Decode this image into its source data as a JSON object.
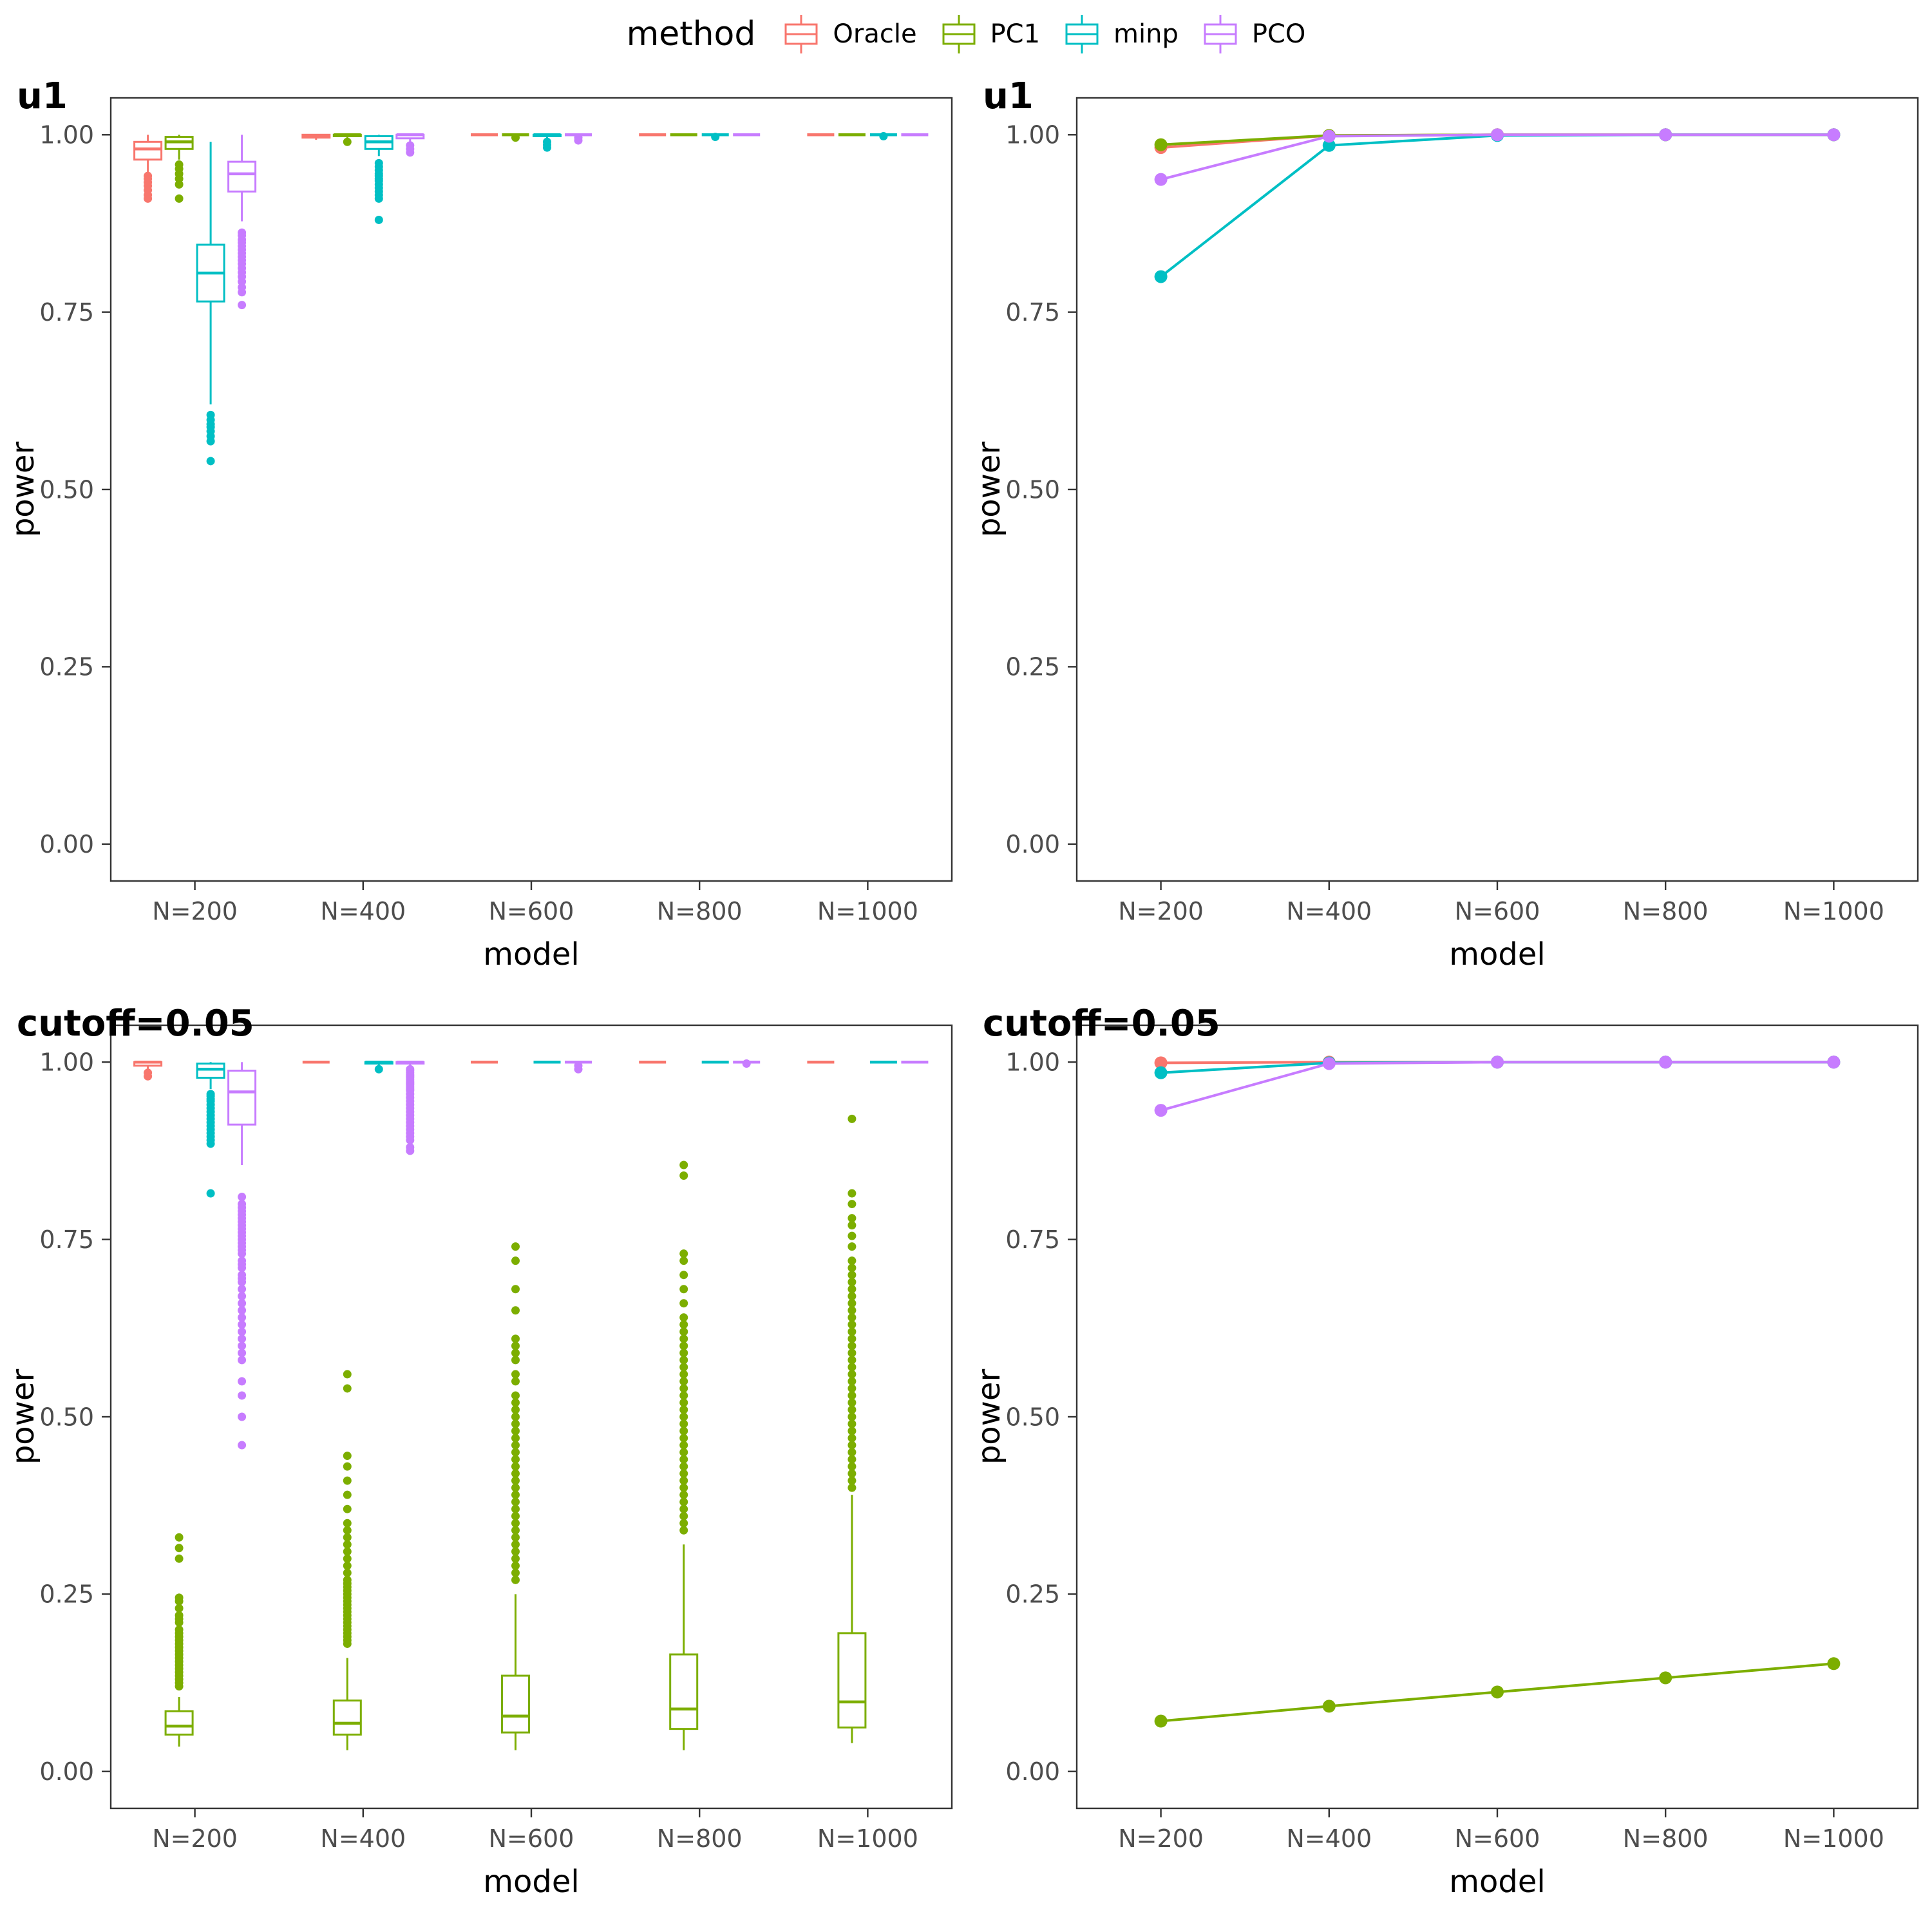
{
  "legend": {
    "title": "method",
    "items": [
      {
        "label": "Oracle",
        "color": "#F8766D"
      },
      {
        "label": "PC1",
        "color": "#7CAE00"
      },
      {
        "label": "minp",
        "color": "#00BFC4"
      },
      {
        "label": "PCO",
        "color": "#C77CFF"
      }
    ]
  },
  "layout": {
    "legend_position": "top",
    "grid": "off",
    "panel_border": "#333333"
  },
  "chart_data": [
    {
      "id": "u1_box",
      "type": "boxplot",
      "title": "u1",
      "xlabel": "model",
      "ylabel": "power",
      "categories": [
        "N=200",
        "N=400",
        "N=600",
        "N=800",
        "N=1000"
      ],
      "yticks": [
        0,
        0.25,
        0.5,
        0.75,
        1.0
      ],
      "ylim": [
        0,
        1
      ],
      "series": [
        {
          "name": "Oracle",
          "color": "#F8766D",
          "boxes": [
            {
              "lo": 0.945,
              "q1": 0.965,
              "med": 0.98,
              "q3": 0.99,
              "hi": 1.0,
              "out": [
                0.942,
                0.938,
                0.933,
                0.928,
                0.922,
                0.915,
                0.91
              ]
            },
            {
              "lo": 0.993,
              "q1": 0.996,
              "med": 0.999,
              "q3": 1.0,
              "hi": 1.0,
              "out": []
            },
            {
              "lo": 1.0,
              "q1": 1.0,
              "med": 1.0,
              "q3": 1.0,
              "hi": 1.0,
              "out": []
            },
            {
              "lo": 1.0,
              "q1": 1.0,
              "med": 1.0,
              "q3": 1.0,
              "hi": 1.0,
              "out": []
            },
            {
              "lo": 1.0,
              "q1": 1.0,
              "med": 1.0,
              "q3": 1.0,
              "hi": 1.0,
              "out": []
            }
          ]
        },
        {
          "name": "PC1",
          "color": "#7CAE00",
          "boxes": [
            {
              "lo": 0.965,
              "q1": 0.98,
              "med": 0.99,
              "q3": 0.997,
              "hi": 1.0,
              "out": [
                0.958,
                0.952,
                0.945,
                0.938,
                0.93,
                0.91
              ]
            },
            {
              "lo": 0.995,
              "q1": 0.998,
              "med": 1.0,
              "q3": 1.0,
              "hi": 1.0,
              "out": [
                0.99
              ]
            },
            {
              "lo": 1.0,
              "q1": 1.0,
              "med": 1.0,
              "q3": 1.0,
              "hi": 1.0,
              "out": [
                0.996
              ]
            },
            {
              "lo": 1.0,
              "q1": 1.0,
              "med": 1.0,
              "q3": 1.0,
              "hi": 1.0,
              "out": []
            },
            {
              "lo": 1.0,
              "q1": 1.0,
              "med": 1.0,
              "q3": 1.0,
              "hi": 1.0,
              "out": []
            }
          ]
        },
        {
          "name": "minp",
          "color": "#00BFC4",
          "boxes": [
            {
              "lo": 0.62,
              "q1": 0.765,
              "med": 0.805,
              "q3": 0.845,
              "hi": 0.99,
              "out": [
                0.605,
                0.598,
                0.592,
                0.588,
                0.582,
                0.575,
                0.568,
                0.54
              ]
            },
            {
              "lo": 0.97,
              "q1": 0.98,
              "med": 0.99,
              "q3": 0.998,
              "hi": 1.0,
              "out": [
                0.96,
                0.955,
                0.95,
                0.945,
                0.942,
                0.938,
                0.935,
                0.93,
                0.925,
                0.92,
                0.915,
                0.91,
                0.88
              ]
            },
            {
              "lo": 0.995,
              "q1": 0.998,
              "med": 1.0,
              "q3": 1.0,
              "hi": 1.0,
              "out": [
                0.99,
                0.986,
                0.982
              ]
            },
            {
              "lo": 1.0,
              "q1": 1.0,
              "med": 1.0,
              "q3": 1.0,
              "hi": 1.0,
              "out": [
                0.997
              ]
            },
            {
              "lo": 1.0,
              "q1": 1.0,
              "med": 1.0,
              "q3": 1.0,
              "hi": 1.0,
              "out": [
                0.998
              ]
            }
          ]
        },
        {
          "name": "PCO",
          "color": "#C77CFF",
          "boxes": [
            {
              "lo": 0.878,
              "q1": 0.92,
              "med": 0.945,
              "q3": 0.962,
              "hi": 1.0,
              "out": [
                0.862,
                0.858,
                0.852,
                0.848,
                0.843,
                0.838,
                0.833,
                0.828,
                0.823,
                0.818,
                0.812,
                0.806,
                0.8,
                0.793,
                0.785,
                0.778,
                0.76
              ]
            },
            {
              "lo": 0.99,
              "q1": 0.995,
              "med": 1.0,
              "q3": 1.0,
              "hi": 1.0,
              "out": [
                0.985,
                0.98,
                0.975
              ]
            },
            {
              "lo": 1.0,
              "q1": 1.0,
              "med": 1.0,
              "q3": 1.0,
              "hi": 1.0,
              "out": [
                0.996,
                0.992
              ]
            },
            {
              "lo": 1.0,
              "q1": 1.0,
              "med": 1.0,
              "q3": 1.0,
              "hi": 1.0,
              "out": []
            },
            {
              "lo": 1.0,
              "q1": 1.0,
              "med": 1.0,
              "q3": 1.0,
              "hi": 1.0,
              "out": []
            }
          ]
        }
      ]
    },
    {
      "id": "u1_line",
      "type": "line",
      "title": "u1",
      "xlabel": "model",
      "ylabel": "power",
      "categories": [
        "N=200",
        "N=400",
        "N=600",
        "N=800",
        "N=1000"
      ],
      "yticks": [
        0,
        0.25,
        0.5,
        0.75,
        1.0
      ],
      "ylim": [
        0,
        1
      ],
      "series": [
        {
          "name": "Oracle",
          "color": "#F8766D",
          "values": [
            0.982,
            0.999,
            1.0,
            1.0,
            1.0
          ]
        },
        {
          "name": "PC1",
          "color": "#7CAE00",
          "values": [
            0.986,
            0.999,
            1.0,
            1.0,
            1.0
          ]
        },
        {
          "name": "minp",
          "color": "#00BFC4",
          "values": [
            0.8,
            0.985,
            0.999,
            1.0,
            1.0
          ]
        },
        {
          "name": "PCO",
          "color": "#C77CFF",
          "values": [
            0.937,
            0.998,
            1.0,
            1.0,
            1.0
          ]
        }
      ]
    },
    {
      "id": "cutoff_box",
      "type": "boxplot",
      "title": "cutoff=0.05",
      "xlabel": "model",
      "ylabel": "power",
      "categories": [
        "N=200",
        "N=400",
        "N=600",
        "N=800",
        "N=1000"
      ],
      "yticks": [
        0,
        0.25,
        0.5,
        0.75,
        1.0
      ],
      "ylim": [
        0,
        1
      ],
      "series": [
        {
          "name": "Oracle",
          "color": "#F8766D",
          "boxes": [
            {
              "lo": 0.99,
              "q1": 0.995,
              "med": 1.0,
              "q3": 1.0,
              "hi": 1.0,
              "out": [
                0.985,
                0.98
              ]
            },
            {
              "lo": 1.0,
              "q1": 1.0,
              "med": 1.0,
              "q3": 1.0,
              "hi": 1.0,
              "out": []
            },
            {
              "lo": 1.0,
              "q1": 1.0,
              "med": 1.0,
              "q3": 1.0,
              "hi": 1.0,
              "out": []
            },
            {
              "lo": 1.0,
              "q1": 1.0,
              "med": 1.0,
              "q3": 1.0,
              "hi": 1.0,
              "out": []
            },
            {
              "lo": 1.0,
              "q1": 1.0,
              "med": 1.0,
              "q3": 1.0,
              "hi": 1.0,
              "out": []
            }
          ]
        },
        {
          "name": "PC1",
          "color": "#7CAE00",
          "boxes": [
            {
              "lo": 0.035,
              "q1": 0.052,
              "med": 0.064,
              "q3": 0.085,
              "hi": 0.105,
              "out": [
                0.12,
                0.125,
                0.13,
                0.135,
                0.14,
                0.145,
                0.15,
                0.155,
                0.16,
                0.165,
                0.17,
                0.175,
                0.18,
                0.185,
                0.19,
                0.195,
                0.2,
                0.21,
                0.215,
                0.22,
                0.23,
                0.24,
                0.245,
                0.3,
                0.315,
                0.33
              ]
            },
            {
              "lo": 0.03,
              "q1": 0.052,
              "med": 0.068,
              "q3": 0.1,
              "hi": 0.16,
              "out": [
                0.18,
                0.185,
                0.19,
                0.195,
                0.2,
                0.205,
                0.21,
                0.215,
                0.22,
                0.225,
                0.23,
                0.235,
                0.24,
                0.245,
                0.25,
                0.255,
                0.26,
                0.265,
                0.27,
                0.28,
                0.29,
                0.3,
                0.31,
                0.32,
                0.33,
                0.34,
                0.35,
                0.37,
                0.39,
                0.41,
                0.43,
                0.445,
                0.54,
                0.56
              ]
            },
            {
              "lo": 0.03,
              "q1": 0.055,
              "med": 0.078,
              "q3": 0.135,
              "hi": 0.25,
              "out": [
                0.27,
                0.28,
                0.29,
                0.3,
                0.31,
                0.32,
                0.33,
                0.34,
                0.35,
                0.36,
                0.37,
                0.38,
                0.39,
                0.4,
                0.41,
                0.42,
                0.43,
                0.44,
                0.45,
                0.46,
                0.47,
                0.48,
                0.49,
                0.5,
                0.51,
                0.52,
                0.53,
                0.55,
                0.56,
                0.58,
                0.59,
                0.6,
                0.61,
                0.65,
                0.68,
                0.72,
                0.74
              ]
            },
            {
              "lo": 0.03,
              "q1": 0.06,
              "med": 0.088,
              "q3": 0.165,
              "hi": 0.32,
              "out": [
                0.34,
                0.35,
                0.36,
                0.37,
                0.38,
                0.39,
                0.4,
                0.41,
                0.42,
                0.43,
                0.44,
                0.45,
                0.46,
                0.47,
                0.48,
                0.49,
                0.5,
                0.51,
                0.52,
                0.53,
                0.54,
                0.55,
                0.56,
                0.57,
                0.58,
                0.59,
                0.6,
                0.61,
                0.62,
                0.63,
                0.64,
                0.66,
                0.68,
                0.7,
                0.72,
                0.73,
                0.84,
                0.855
              ]
            },
            {
              "lo": 0.04,
              "q1": 0.062,
              "med": 0.098,
              "q3": 0.195,
              "hi": 0.39,
              "out": [
                0.4,
                0.41,
                0.42,
                0.43,
                0.44,
                0.45,
                0.46,
                0.47,
                0.48,
                0.49,
                0.5,
                0.51,
                0.52,
                0.53,
                0.54,
                0.55,
                0.56,
                0.57,
                0.58,
                0.59,
                0.6,
                0.61,
                0.62,
                0.63,
                0.64,
                0.65,
                0.66,
                0.67,
                0.68,
                0.69,
                0.7,
                0.71,
                0.72,
                0.74,
                0.755,
                0.77,
                0.78,
                0.8,
                0.815,
                0.92
              ]
            }
          ]
        },
        {
          "name": "minp",
          "color": "#00BFC4",
          "boxes": [
            {
              "lo": 0.962,
              "q1": 0.978,
              "med": 0.99,
              "q3": 0.998,
              "hi": 1.0,
              "out": [
                0.955,
                0.952,
                0.948,
                0.945,
                0.94,
                0.935,
                0.93,
                0.925,
                0.92,
                0.915,
                0.91,
                0.905,
                0.9,
                0.895,
                0.89,
                0.885,
                0.815
              ]
            },
            {
              "lo": 0.995,
              "q1": 0.998,
              "med": 1.0,
              "q3": 1.0,
              "hi": 1.0,
              "out": [
                0.99
              ]
            },
            {
              "lo": 1.0,
              "q1": 1.0,
              "med": 1.0,
              "q3": 1.0,
              "hi": 1.0,
              "out": []
            },
            {
              "lo": 1.0,
              "q1": 1.0,
              "med": 1.0,
              "q3": 1.0,
              "hi": 1.0,
              "out": []
            },
            {
              "lo": 1.0,
              "q1": 1.0,
              "med": 1.0,
              "q3": 1.0,
              "hi": 1.0,
              "out": []
            }
          ]
        },
        {
          "name": "PCO",
          "color": "#C77CFF",
          "boxes": [
            {
              "lo": 0.855,
              "q1": 0.912,
              "med": 0.958,
              "q3": 0.988,
              "hi": 1.0,
              "out": [
                0.81,
                0.8,
                0.795,
                0.79,
                0.785,
                0.78,
                0.775,
                0.77,
                0.765,
                0.76,
                0.755,
                0.75,
                0.745,
                0.74,
                0.735,
                0.73,
                0.72,
                0.715,
                0.71,
                0.7,
                0.695,
                0.69,
                0.68,
                0.67,
                0.66,
                0.65,
                0.64,
                0.63,
                0.62,
                0.61,
                0.6,
                0.59,
                0.58,
                0.55,
                0.53,
                0.5,
                0.46
              ]
            },
            {
              "lo": 0.995,
              "q1": 0.998,
              "med": 1.0,
              "q3": 1.0,
              "hi": 1.0,
              "out": [
                0.99,
                0.988,
                0.985,
                0.982,
                0.98,
                0.978,
                0.975,
                0.972,
                0.97,
                0.968,
                0.965,
                0.962,
                0.96,
                0.955,
                0.95,
                0.945,
                0.94,
                0.935,
                0.93,
                0.925,
                0.92,
                0.915,
                0.91,
                0.905,
                0.9,
                0.895,
                0.89,
                0.88,
                0.875
              ]
            },
            {
              "lo": 1.0,
              "q1": 1.0,
              "med": 1.0,
              "q3": 1.0,
              "hi": 1.0,
              "out": [
                0.995,
                0.99
              ]
            },
            {
              "lo": 1.0,
              "q1": 1.0,
              "med": 1.0,
              "q3": 1.0,
              "hi": 1.0,
              "out": [
                0.998
              ]
            },
            {
              "lo": 1.0,
              "q1": 1.0,
              "med": 1.0,
              "q3": 1.0,
              "hi": 1.0,
              "out": []
            }
          ]
        }
      ]
    },
    {
      "id": "cutoff_line",
      "type": "line",
      "title": "cutoff=0.05",
      "xlabel": "model",
      "ylabel": "power",
      "categories": [
        "N=200",
        "N=400",
        "N=600",
        "N=800",
        "N=1000"
      ],
      "yticks": [
        0,
        0.25,
        0.5,
        0.75,
        1.0
      ],
      "ylim": [
        0,
        1
      ],
      "series": [
        {
          "name": "Oracle",
          "color": "#F8766D",
          "values": [
            0.999,
            1.0,
            1.0,
            1.0,
            1.0
          ]
        },
        {
          "name": "PC1",
          "color": "#7CAE00",
          "values": [
            0.071,
            0.092,
            0.112,
            0.132,
            0.152
          ]
        },
        {
          "name": "minp",
          "color": "#00BFC4",
          "values": [
            0.985,
            0.999,
            1.0,
            1.0,
            1.0
          ]
        },
        {
          "name": "PCO",
          "color": "#C77CFF",
          "values": [
            0.932,
            0.998,
            1.0,
            1.0,
            1.0
          ]
        }
      ]
    }
  ]
}
